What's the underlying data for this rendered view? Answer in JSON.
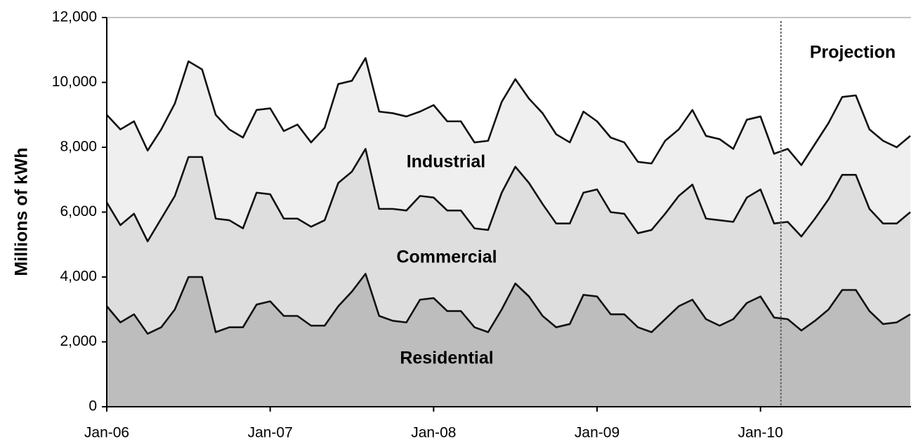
{
  "chart_data": {
    "type": "stacked-area",
    "y_label": "Millions of kWh",
    "categories": [
      "Jan-06",
      null,
      null,
      null,
      null,
      null,
      null,
      null,
      null,
      null,
      null,
      null,
      "Jan-07",
      null,
      null,
      null,
      null,
      null,
      null,
      null,
      null,
      null,
      null,
      null,
      "Jan-08",
      null,
      null,
      null,
      null,
      null,
      null,
      null,
      null,
      null,
      null,
      null,
      "Jan-09",
      null,
      null,
      null,
      null,
      null,
      null,
      null,
      null,
      null,
      null,
      null,
      "Jan-10",
      null,
      null,
      null,
      null,
      null,
      null,
      null,
      null,
      null,
      null,
      null
    ],
    "series": [
      {
        "name": "Residential",
        "color": "#bdbdbd",
        "values": [
          3100,
          2600,
          2850,
          2250,
          2450,
          3000,
          4000,
          4000,
          2300,
          2450,
          2450,
          3150,
          3250,
          2800,
          2800,
          2500,
          2500,
          3100,
          3550,
          4100,
          2800,
          2650,
          2600,
          3300,
          3350,
          2950,
          2950,
          2450,
          2300,
          3000,
          3800,
          3400,
          2800,
          2450,
          2550,
          3450,
          3400,
          2850,
          2850,
          2450,
          2300,
          2700,
          3100,
          3300,
          2700,
          2500,
          2700,
          3200,
          3400,
          2750,
          2700,
          2350,
          2650,
          3000,
          3600,
          3600,
          2950,
          2550,
          2600,
          2850
        ]
      },
      {
        "name": "Commercial",
        "color": "#dedede",
        "values": [
          3200,
          3000,
          3100,
          2850,
          3350,
          3500,
          3700,
          3700,
          3500,
          3300,
          3050,
          3450,
          3300,
          3000,
          3000,
          3050,
          3250,
          3800,
          3700,
          3850,
          3300,
          3450,
          3450,
          3200,
          3100,
          3100,
          3100,
          3050,
          3150,
          3600,
          3600,
          3500,
          3450,
          3200,
          3100,
          3150,
          3300,
          3150,
          3100,
          2900,
          3150,
          3250,
          3400,
          3550,
          3100,
          3250,
          3000,
          3250,
          3300,
          2900,
          3000,
          2900,
          3150,
          3400,
          3550,
          3550,
          3150,
          3100,
          3050,
          3150
        ]
      },
      {
        "name": "Industrial",
        "color": "#efefef",
        "values": [
          2700,
          2950,
          2850,
          2800,
          2750,
          2850,
          2950,
          2700,
          3200,
          2800,
          2800,
          2550,
          2650,
          2700,
          2900,
          2600,
          2850,
          3050,
          2800,
          2800,
          3000,
          2950,
          2900,
          2600,
          2850,
          2750,
          2750,
          2650,
          2750,
          2800,
          2700,
          2600,
          2800,
          2750,
          2500,
          2500,
          2100,
          2300,
          2200,
          2200,
          2050,
          2250,
          2050,
          2300,
          2550,
          2500,
          2250,
          2400,
          2250,
          2150,
          2250,
          2200,
          2300,
          2350,
          2400,
          2450,
          2450,
          2550,
          2350,
          2350
        ]
      }
    ],
    "projection": {
      "label": "Projection",
      "x_index": 49.5
    },
    "ylim": [
      0,
      12000
    ],
    "yticks": [
      0,
      {
        "value": 2000,
        "label": "2,000"
      },
      {
        "value": 4000,
        "label": "4,000"
      },
      {
        "value": 6000,
        "label": "6,000"
      },
      {
        "value": 8000,
        "label": "8,000"
      },
      {
        "value": 10000,
        "label": "10,000"
      },
      {
        "value": 12000,
        "label": "12,000"
      }
    ],
    "line_color": "#111111"
  }
}
